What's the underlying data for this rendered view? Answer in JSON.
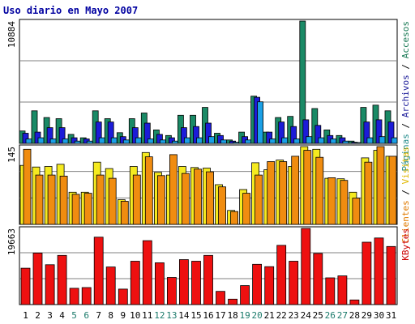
{
  "chart_data": {
    "type": "bar",
    "title": "Uso diario en Mayo 2007",
    "categories": [
      "1",
      "2",
      "3",
      "4",
      "5",
      "6",
      "7",
      "8",
      "9",
      "10",
      "11",
      "12",
      "13",
      "14",
      "15",
      "16",
      "17",
      "18",
      "19",
      "20",
      "21",
      "22",
      "23",
      "24",
      "25",
      "26",
      "27",
      "28",
      "29",
      "30",
      "31"
    ],
    "weekend_days": [
      "5",
      "6",
      "12",
      "13",
      "19",
      "20",
      "26",
      "27"
    ],
    "panels": [
      {
        "id": "top",
        "ymax_label": "10884",
        "ymax": 10884,
        "right_label": [
          {
            "text": "Páginas",
            "color": "#1f8a8a"
          },
          {
            "text": " / ",
            "color": "#000000"
          },
          {
            "text": "Archivos",
            "color": "#1a1a99"
          },
          {
            "text": " / ",
            "color": "#000000"
          },
          {
            "text": "Accesos",
            "color": "#1a7a55"
          }
        ],
        "series": [
          {
            "name": "Accesos",
            "color": "#1a8a66",
            "values": [
              1100,
              2900,
              2300,
              2200,
              800,
              500,
              2900,
              2200,
              950,
              2200,
              2700,
              1200,
              700,
              2500,
              2500,
              3200,
              900,
              300,
              1000,
              4200,
              1000,
              2300,
              2400,
              10884,
              3100,
              1200,
              700,
              200,
              3200,
              3400,
              2900
            ]
          },
          {
            "name": "Archivos",
            "color": "#1c1cd8",
            "values": [
              900,
              1000,
              1400,
              1400,
              500,
              400,
              1900,
              1900,
              600,
              1400,
              1800,
              800,
              500,
              1400,
              1500,
              1800,
              700,
              200,
              600,
              4100,
              1000,
              1900,
              1500,
              2100,
              1600,
              700,
              500,
              100,
              1900,
              2100,
              1900
            ]
          },
          {
            "name": "Páginas",
            "color": "#1aa0e6",
            "values": [
              400,
              500,
              400,
              400,
              200,
              200,
              500,
              500,
              300,
              500,
              400,
              300,
              200,
              500,
              500,
              600,
              300,
              100,
              300,
              3700,
              400,
              500,
              400,
              600,
              500,
              400,
              200,
              50,
              500,
              600,
              500
            ]
          }
        ]
      },
      {
        "id": "middle",
        "ymax_label": "145",
        "ymax": 145,
        "right_label": [
          {
            "text": "Clientes",
            "color": "#e07a00"
          },
          {
            "text": " / ",
            "color": "#000000"
          },
          {
            "text": "Visitas",
            "color": "#e0b800"
          }
        ],
        "series": [
          {
            "name": "Visitas",
            "color": "#f5ea20",
            "values": [
              110,
              107,
              108,
              112,
              60,
              60,
              116,
              104,
              46,
              108,
              134,
              97,
              92,
              108,
              106,
              105,
              74,
              26,
              65,
              115,
              102,
              120,
              108,
              145,
              140,
              86,
              85,
              60,
              124,
              138,
              127
            ]
          },
          {
            "name": "Clientes",
            "color": "#f08c10",
            "values": [
              140,
              92,
              92,
              90,
              56,
              58,
              92,
              86,
              43,
              92,
              126,
              91,
              130,
              95,
              103,
              98,
              70,
              24,
              58,
              92,
              117,
              117,
              127,
              138,
              125,
              87,
              82,
              49,
              116,
              145,
              127
            ]
          }
        ]
      },
      {
        "id": "bottom",
        "ymax_label": "19663",
        "ymax": 19663,
        "right_label": [
          {
            "text": "KBytes",
            "color": "#cc0000"
          }
        ],
        "series": [
          {
            "name": "KBytes",
            "color": "#ee1010",
            "values": [
              9400,
              13300,
              10300,
              12700,
              4200,
              4400,
              17400,
              9700,
              4000,
              11200,
              16500,
              10800,
              7000,
              11600,
              11200,
              12700,
              3400,
              1400,
              4900,
              10400,
              9800,
              15300,
              11200,
              19663,
              13200,
              6900,
              7400,
              1200,
              16100,
              17200,
              15000
            ]
          }
        ]
      }
    ]
  }
}
